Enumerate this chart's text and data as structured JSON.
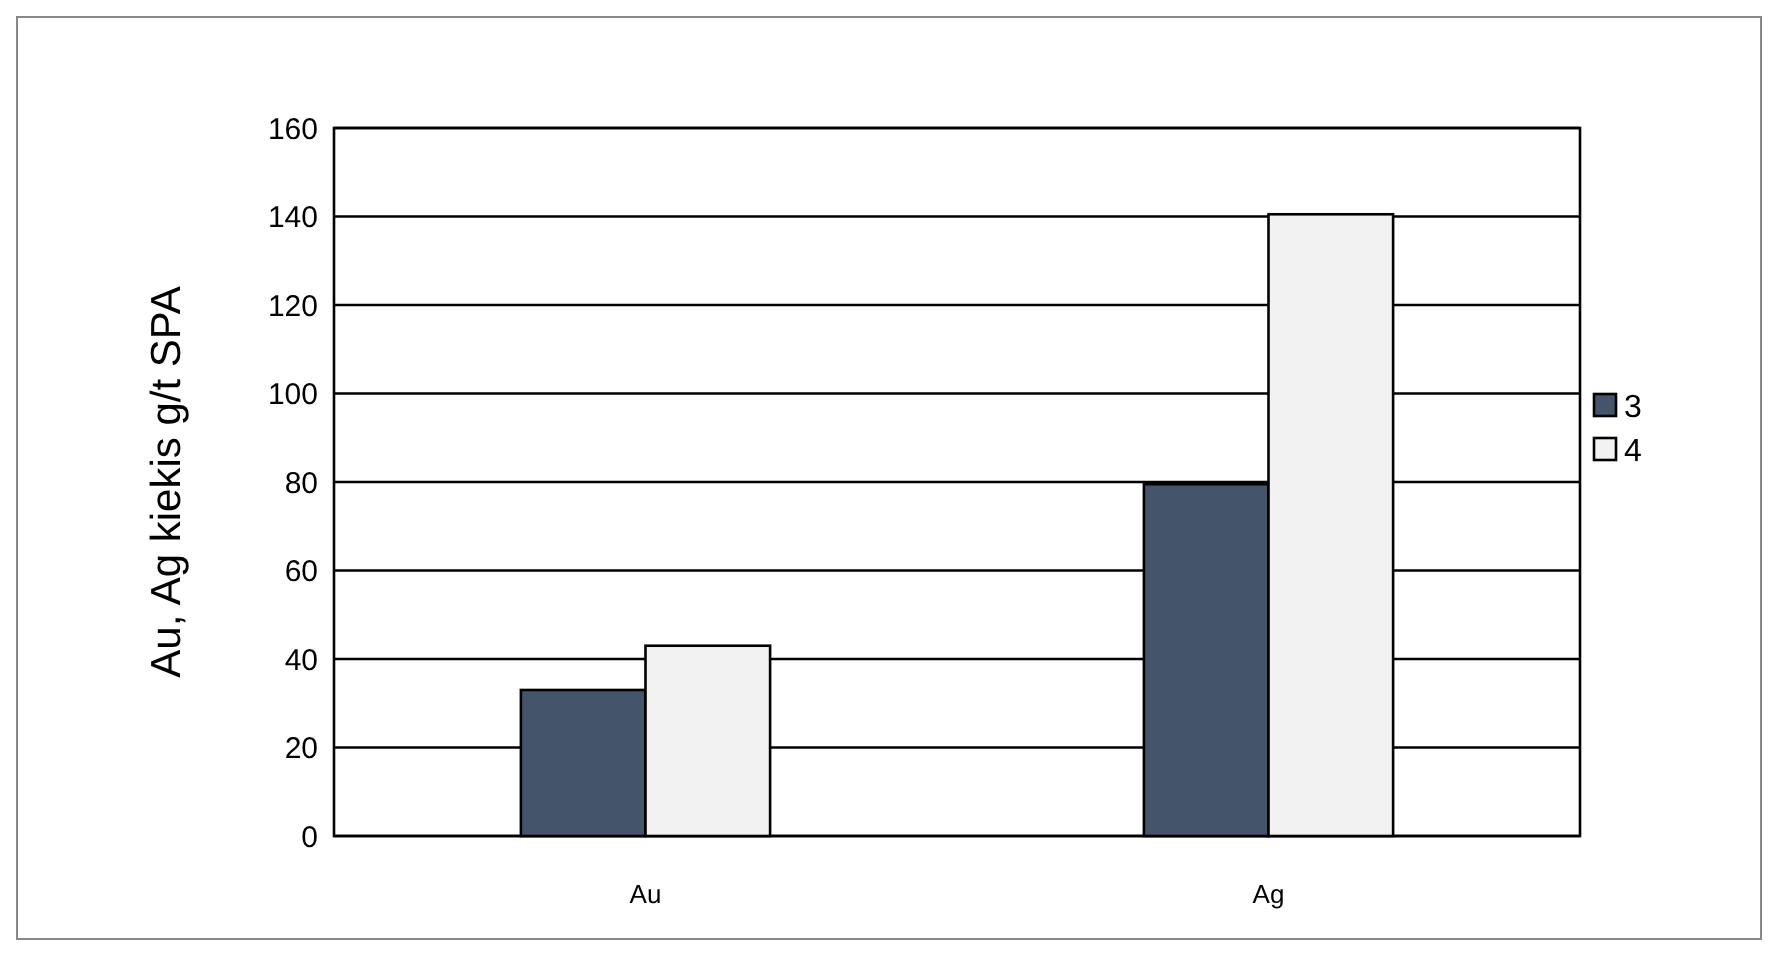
{
  "chart_data": {
    "type": "bar",
    "ylabel": "Au, Ag kiekis g/t SPA",
    "categories": [
      "Au",
      "Ag"
    ],
    "series": [
      {
        "name": "3",
        "color": "#44546a",
        "values": [
          33,
          79.5
        ]
      },
      {
        "name": "4",
        "color": "#f2f2f2",
        "values": [
          43,
          140.5
        ]
      }
    ],
    "ylim": [
      0,
      160
    ],
    "yticks": [
      0,
      20,
      40,
      60,
      80,
      100,
      120,
      140,
      160
    ],
    "grid": "y",
    "legend": "right"
  }
}
